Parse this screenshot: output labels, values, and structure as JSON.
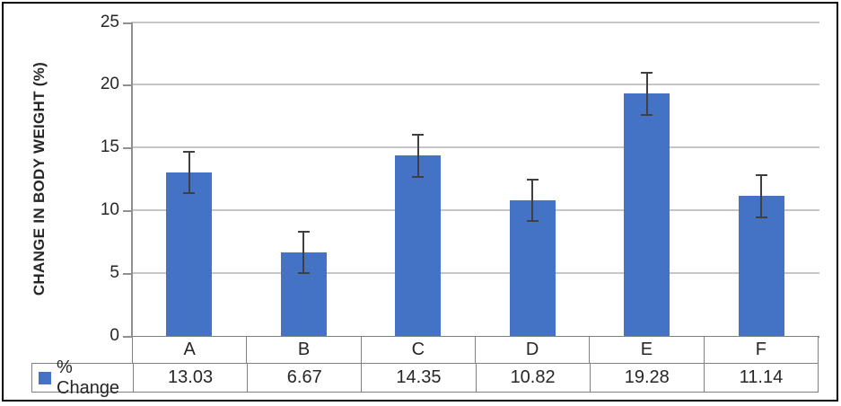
{
  "figure": {
    "background": "#ffffff",
    "border_color": "#000000"
  },
  "chart_data": {
    "type": "bar",
    "title": "",
    "ylabel": "CHANGE IN BODY WEIGHT (%)",
    "xlabel": "",
    "categories": [
      "A",
      "B",
      "C",
      "D",
      "E",
      "F"
    ],
    "series": [
      {
        "name": "% Change",
        "values": [
          13.03,
          6.67,
          14.35,
          10.82,
          19.28,
          11.14
        ],
        "display_values": [
          "13.03",
          "6.67",
          "14.35",
          "10.82",
          "19.28",
          "11.14"
        ],
        "errors": [
          1.7,
          1.7,
          1.75,
          1.7,
          1.75,
          1.75
        ]
      }
    ],
    "ylim": [
      0,
      25
    ],
    "yticks": [
      0,
      5,
      10,
      15,
      20,
      25
    ],
    "grid": true,
    "error_bars": true,
    "legend_position": "bottom-table",
    "colors": {
      "bar": "#4472C4",
      "error_bar": "#404040",
      "gridline": "#C6C6C6",
      "axis": "#8F8F8F",
      "table_border": "#808080",
      "text": "#262626"
    }
  }
}
